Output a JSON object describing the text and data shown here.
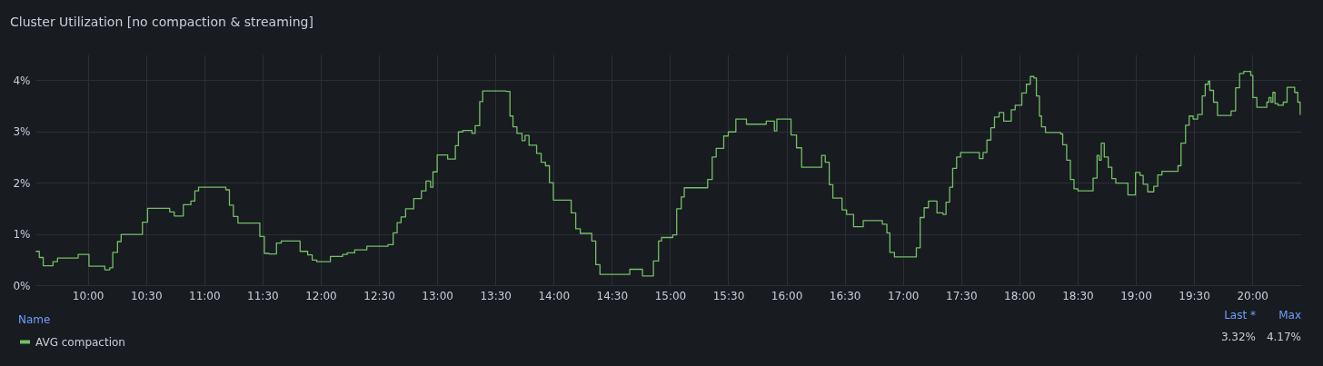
{
  "chart_data": {
    "type": "step",
    "title": "Cluster Utilization [no compaction & streaming]",
    "x": [
      9.552,
      9.583,
      9.617,
      9.701,
      9.74,
      9.917,
      10.01,
      10.146,
      10.188,
      10.214,
      10.255,
      10.286,
      10.469,
      10.513,
      10.703,
      10.742,
      10.82,
      10.885,
      10.919,
      10.951,
      11.185,
      11.216,
      11.25,
      11.289,
      11.477,
      11.516,
      11.555,
      11.62,
      11.661,
      11.823,
      11.888,
      11.927,
      11.966,
      12.083,
      12.188,
      12.227,
      12.292,
      12.396,
      12.578,
      12.622,
      12.656,
      12.69,
      12.729,
      12.799,
      12.865,
      12.904,
      12.943,
      12.964,
      13.0,
      13.09,
      13.156,
      13.182,
      13.221,
      13.299,
      13.326,
      13.365,
      13.391,
      13.591,
      13.625,
      13.651,
      13.685,
      13.729,
      13.755,
      13.789,
      13.854,
      13.893,
      13.93,
      13.964,
      13.998,
      14.151,
      14.19,
      14.229,
      14.328,
      14.362,
      14.398,
      14.654,
      14.763,
      14.857,
      14.901,
      14.927,
      15.023,
      15.057,
      15.096,
      15.122,
      15.323,
      15.362,
      15.396,
      15.461,
      15.5,
      15.565,
      15.656,
      15.826,
      15.896,
      15.917,
      16.008,
      16.039,
      16.086,
      16.13,
      16.302,
      16.333,
      16.367,
      16.398,
      16.477,
      16.516,
      16.576,
      16.659,
      16.823,
      16.862,
      16.888,
      16.927,
      17.115,
      17.148,
      17.182,
      17.219,
      17.292,
      17.344,
      17.37,
      17.401,
      17.427,
      17.461,
      17.495,
      17.656,
      17.688,
      17.721,
      17.755,
      17.786,
      17.826,
      17.865,
      17.93,
      17.964,
      18.021,
      18.06,
      18.094,
      18.125,
      18.146,
      18.172,
      18.19,
      18.224,
      18.354,
      18.372,
      18.406,
      18.438,
      18.469,
      18.503,
      18.633,
      18.667,
      18.685,
      18.703,
      18.729,
      18.763,
      18.794,
      18.828,
      18.932,
      18.997,
      19.036,
      19.063,
      19.102,
      19.154,
      19.188,
      19.224,
      19.362,
      19.388,
      19.427,
      19.458,
      19.492,
      19.531,
      19.57,
      19.596,
      19.622,
      19.635,
      19.667,
      19.701,
      19.818,
      19.857,
      19.891,
      19.927,
      19.987,
      20.005,
      20.039,
      20.125,
      20.143,
      20.161,
      20.177,
      20.195,
      20.221,
      20.266,
      20.299,
      20.364,
      20.391,
      20.411
    ],
    "series": [
      {
        "name": "AVG compaction",
        "color": "#73bf69",
        "values": [
          0.66,
          0.54,
          0.38,
          0.46,
          0.53,
          0.6,
          0.37,
          0.3,
          0.34,
          0.64,
          0.85,
          0.99,
          1.23,
          1.5,
          1.43,
          1.35,
          1.57,
          1.64,
          1.84,
          1.91,
          1.86,
          1.56,
          1.34,
          1.21,
          0.95,
          0.62,
          0.61,
          0.82,
          0.86,
          0.66,
          0.59,
          0.49,
          0.46,
          0.56,
          0.6,
          0.63,
          0.69,
          0.76,
          0.79,
          1.02,
          1.22,
          1.33,
          1.49,
          1.69,
          1.84,
          2.03,
          1.91,
          2.21,
          2.54,
          2.46,
          2.72,
          2.99,
          3.02,
          2.96,
          3.11,
          3.58,
          3.79,
          3.78,
          3.3,
          3.09,
          2.96,
          2.82,
          2.92,
          2.73,
          2.57,
          2.4,
          2.33,
          2.0,
          1.66,
          1.41,
          1.1,
          1.01,
          0.86,
          0.4,
          0.21,
          0.31,
          0.18,
          0.47,
          0.86,
          0.93,
          0.98,
          1.49,
          1.72,
          1.9,
          2.06,
          2.5,
          2.67,
          2.91,
          2.99,
          3.24,
          3.14,
          3.2,
          3.01,
          3.24,
          3.24,
          2.93,
          2.68,
          2.3,
          2.53,
          2.4,
          1.96,
          1.7,
          1.47,
          1.38,
          1.14,
          1.26,
          1.19,
          1.02,
          0.64,
          0.55,
          0.73,
          1.32,
          1.51,
          1.64,
          1.41,
          1.38,
          1.62,
          1.91,
          2.28,
          2.5,
          2.59,
          2.47,
          2.59,
          2.83,
          3.07,
          3.28,
          3.37,
          3.2,
          3.42,
          3.51,
          3.75,
          3.92,
          4.07,
          4.04,
          3.69,
          3.3,
          3.09,
          2.98,
          2.95,
          2.74,
          2.44,
          2.06,
          1.88,
          1.84,
          2.09,
          2.53,
          2.44,
          2.77,
          2.5,
          2.3,
          2.08,
          1.99,
          1.76,
          2.2,
          2.14,
          1.97,
          1.82,
          1.93,
          2.15,
          2.22,
          2.33,
          2.77,
          3.12,
          3.3,
          3.24,
          3.33,
          3.69,
          3.92,
          3.98,
          3.8,
          3.57,
          3.31,
          3.4,
          3.85,
          4.13,
          4.17,
          4.09,
          3.66,
          3.47,
          3.57,
          3.66,
          3.57,
          3.76,
          3.54,
          3.51,
          3.57,
          3.86,
          3.76,
          3.57,
          3.32
        ]
      }
    ],
    "xlim": [
      9.55,
      20.42
    ],
    "xticks": [
      {
        "value": 10,
        "label": "10:00"
      },
      {
        "value": 10.5,
        "label": "10:30"
      },
      {
        "value": 11,
        "label": "11:00"
      },
      {
        "value": 11.5,
        "label": "11:30"
      },
      {
        "value": 12,
        "label": "12:00"
      },
      {
        "value": 12.5,
        "label": "12:30"
      },
      {
        "value": 13,
        "label": "13:00"
      },
      {
        "value": 13.5,
        "label": "13:30"
      },
      {
        "value": 14,
        "label": "14:00"
      },
      {
        "value": 14.5,
        "label": "14:30"
      },
      {
        "value": 15,
        "label": "15:00"
      },
      {
        "value": 15.5,
        "label": "15:30"
      },
      {
        "value": 16,
        "label": "16:00"
      },
      {
        "value": 16.5,
        "label": "16:30"
      },
      {
        "value": 17,
        "label": "17:00"
      },
      {
        "value": 17.5,
        "label": "17:30"
      },
      {
        "value": 18,
        "label": "18:00"
      },
      {
        "value": 18.5,
        "label": "18:30"
      },
      {
        "value": 19,
        "label": "19:00"
      },
      {
        "value": 19.5,
        "label": "19:30"
      },
      {
        "value": 20,
        "label": "20:00"
      }
    ],
    "ylim": [
      0,
      4.5
    ],
    "yticks": [
      {
        "value": 0,
        "label": "0%"
      },
      {
        "value": 1,
        "label": "1%"
      },
      {
        "value": 2,
        "label": "2%"
      },
      {
        "value": 3,
        "label": "3%"
      },
      {
        "value": 4,
        "label": "4%"
      }
    ],
    "grid": true,
    "legend": "bottom left",
    "legend_title": "Name",
    "marker": "none",
    "line_style": "solid",
    "annotations": [
      "Last *",
      "Max",
      "3.32%",
      "4.17%"
    ]
  }
}
